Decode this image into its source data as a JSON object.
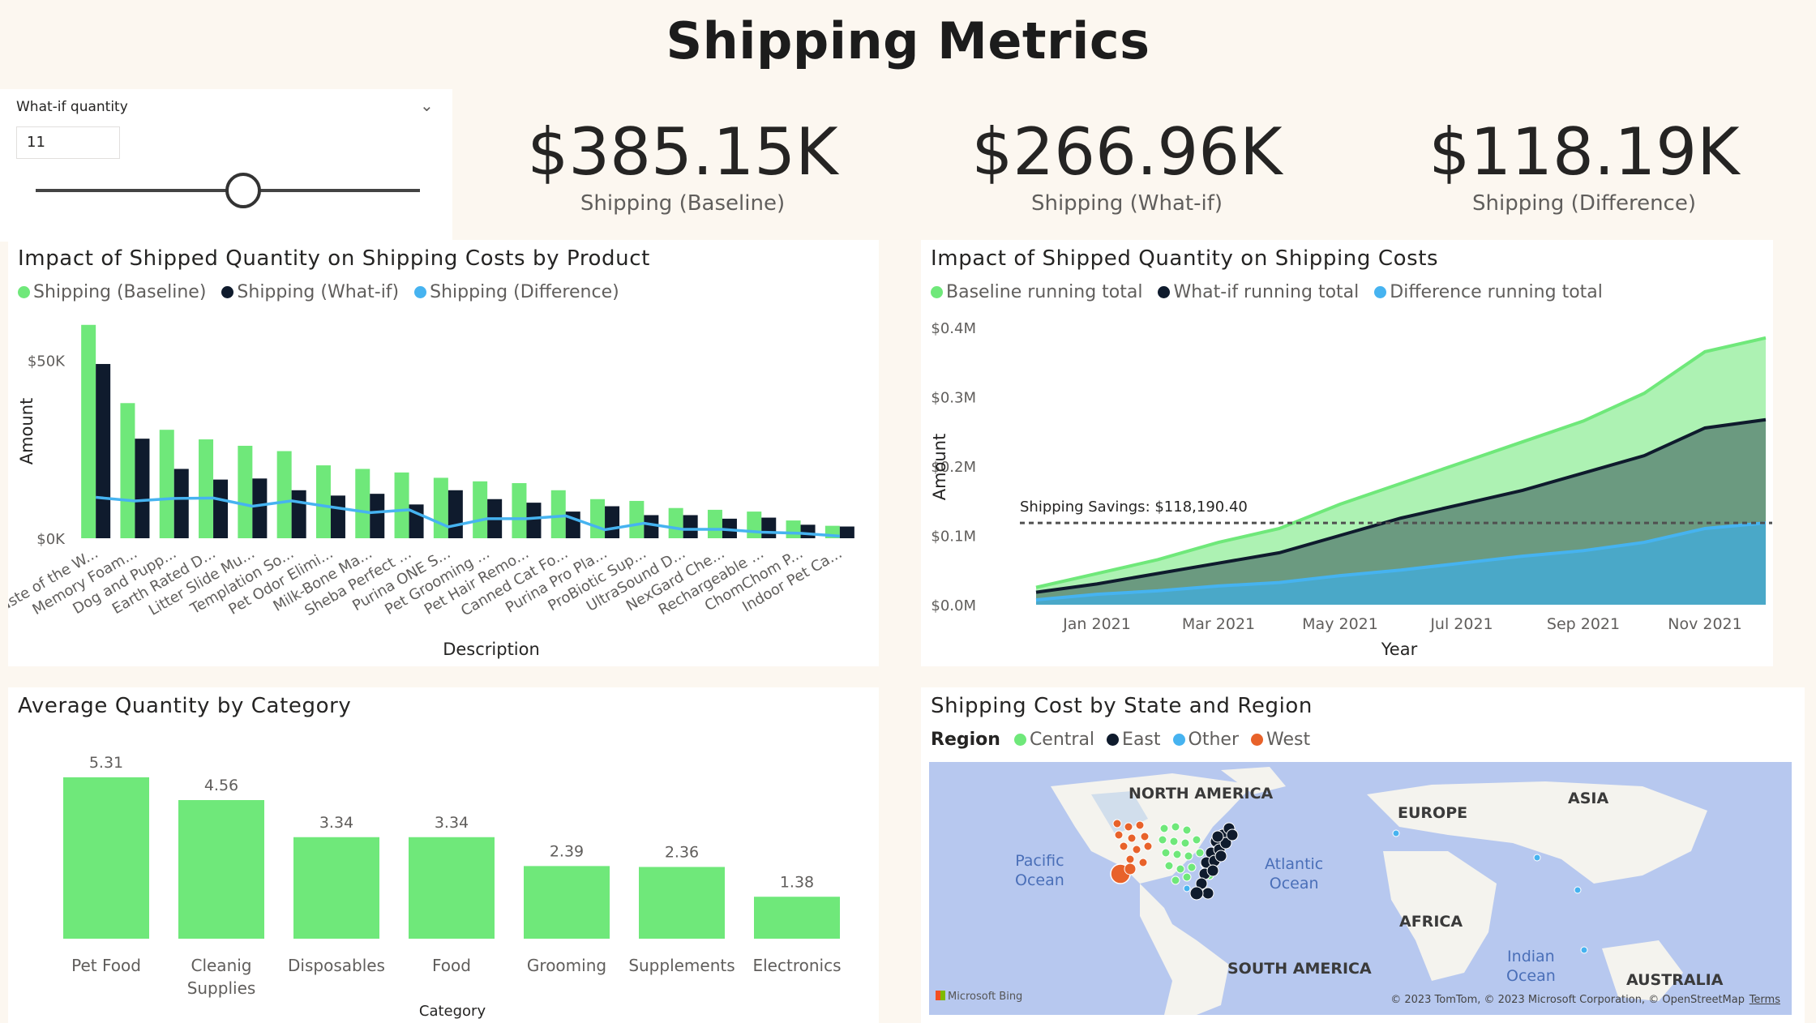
{
  "page_title": "Shipping Metrics",
  "slicer": {
    "label": "What-if quantity",
    "value": "11",
    "fraction": 0.54
  },
  "kpis": [
    {
      "value": "$385.15K",
      "label": "Shipping (Baseline)"
    },
    {
      "value": "$266.96K",
      "label": "Shipping (What-if)"
    },
    {
      "value": "$118.19K",
      "label": "Shipping (Difference)"
    }
  ],
  "colors": {
    "green": "#6fe87a",
    "navy": "#0f1b2d",
    "blue": "#46b3f0",
    "orange": "#e8622a",
    "areaGreen": "#adf2b3",
    "areaDark": "#6b9a80",
    "areaBlue": "#4aa8c8"
  },
  "chart_data": [
    {
      "type": "bar",
      "title": "Impact of Shipped Quantity on Shipping Costs by Product",
      "xlabel": "Description",
      "ylabel": "Amount",
      "ylim": [
        0,
        62000
      ],
      "yticks": [
        {
          "v": 0,
          "label": "$0K"
        },
        {
          "v": 50000,
          "label": "$50K"
        }
      ],
      "categories": [
        "Taste of the W...",
        "Memory Foam...",
        "Dog and Pupp...",
        "Earth Rated D...",
        "Litter Slide Mu...",
        "Templation So...",
        "Pet Odor Elimi...",
        "Milk-Bone Ma...",
        "Sheba Perfect ...",
        "Purina ONE S...",
        "Pet Grooming ...",
        "Pet Hair Remo...",
        "Canned Cat Fo...",
        "Purina Pro Pla...",
        "ProBiotic Sup...",
        "UltraSound D...",
        "NexGard Che...",
        "Rechargeable ...",
        "ChomChom P...",
        "Indoor Pet Ca..."
      ],
      "series": [
        {
          "name": "Shipping (Baseline)",
          "kind": "bar",
          "values": [
            60000,
            38000,
            30500,
            27800,
            26000,
            24500,
            20500,
            19500,
            18500,
            17000,
            16000,
            15500,
            13500,
            11000,
            10500,
            8500,
            8000,
            7500,
            5000,
            3500
          ]
        },
        {
          "name": "Shipping (What-if)",
          "kind": "bar",
          "values": [
            49000,
            28000,
            19500,
            16500,
            16800,
            13500,
            12000,
            12500,
            9500,
            13500,
            11000,
            10000,
            7500,
            9000,
            6500,
            6500,
            5500,
            5800,
            3800,
            3300
          ]
        },
        {
          "name": "Shipping (Difference)",
          "kind": "line",
          "values": [
            11500,
            10500,
            11200,
            11300,
            9000,
            10500,
            8800,
            7200,
            8000,
            3200,
            5500,
            5500,
            6300,
            2400,
            4200,
            2500,
            2500,
            1700,
            1400,
            600
          ]
        }
      ],
      "legend": "top-left"
    },
    {
      "type": "area",
      "title": "Impact of Shipped Quantity on Shipping Costs",
      "xlabel": "Year",
      "ylabel": "Amount",
      "ylim": [
        0,
        0.4
      ],
      "yticks": [
        {
          "v": 0,
          "label": "$0.0M"
        },
        {
          "v": 0.1,
          "label": "$0.1M"
        },
        {
          "v": 0.2,
          "label": "$0.2M"
        },
        {
          "v": 0.3,
          "label": "$0.3M"
        },
        {
          "v": 0.4,
          "label": "$0.4M"
        }
      ],
      "xticks": [
        "Jan 2021",
        "Mar 2021",
        "May 2021",
        "Jul 2021",
        "Sep 2021",
        "Nov 2021"
      ],
      "x": [
        "Dec 2020",
        "Jan 2021",
        "Feb 2021",
        "Mar 2021",
        "Apr 2021",
        "May 2021",
        "Jun 2021",
        "Jul 2021",
        "Aug 2021",
        "Sep 2021",
        "Oct 2021",
        "Nov 2021",
        "Dec 2021"
      ],
      "series": [
        {
          "name": "Baseline running total",
          "values": [
            0.025,
            0.045,
            0.065,
            0.09,
            0.11,
            0.145,
            0.175,
            0.205,
            0.235,
            0.265,
            0.305,
            0.365,
            0.385
          ]
        },
        {
          "name": "What-if running total",
          "values": [
            0.018,
            0.03,
            0.045,
            0.06,
            0.075,
            0.1,
            0.125,
            0.145,
            0.165,
            0.19,
            0.215,
            0.255,
            0.267
          ]
        },
        {
          "name": "Difference running total",
          "values": [
            0.007,
            0.015,
            0.02,
            0.027,
            0.032,
            0.042,
            0.05,
            0.06,
            0.07,
            0.078,
            0.09,
            0.11,
            0.118
          ]
        }
      ],
      "reference_line": {
        "value": 0.118,
        "label": "Shipping Savings: $118,190.40"
      },
      "legend": "top-left"
    },
    {
      "type": "bar",
      "title": "Average Quantity by Category",
      "xlabel": "Category",
      "ylim": [
        0,
        5.6
      ],
      "categories": [
        [
          "Pet Food"
        ],
        [
          "Cleanig",
          "Supplies"
        ],
        [
          "Disposables"
        ],
        [
          "Food"
        ],
        [
          "Grooming"
        ],
        [
          "Supplements"
        ],
        [
          "Electronics"
        ]
      ],
      "values": [
        5.31,
        4.56,
        3.34,
        3.34,
        2.39,
        2.36,
        1.38
      ],
      "data_labels": [
        "5.31",
        "4.56",
        "3.34",
        "3.34",
        "2.39",
        "2.36",
        "1.38"
      ]
    }
  ],
  "map": {
    "title": "Shipping Cost by State and Region",
    "legend_title": "Region",
    "legend": [
      {
        "name": "Central",
        "color": "#6fe87a"
      },
      {
        "name": "East",
        "color": "#0f1b2d"
      },
      {
        "name": "Other",
        "color": "#46b3f0"
      },
      {
        "name": "West",
        "color": "#e8622a"
      }
    ],
    "labels": {
      "north_america": "NORTH AMERICA",
      "europe": "EUROPE",
      "asia": "ASIA",
      "africa": "AFRICA",
      "south_america": "SOUTH AMERICA",
      "australia": "AUSTRALIA",
      "pacific": "Pacific",
      "pacific2": "Ocean",
      "atlantic": "Atlantic",
      "atlantic2": "Ocean",
      "indian": "Indian",
      "indian2": "Ocean"
    },
    "bing": "Microsoft Bing",
    "copyright": "© 2023 TomTom, © 2023 Microsoft Corporation, © OpenStreetMap",
    "terms": "Terms"
  }
}
